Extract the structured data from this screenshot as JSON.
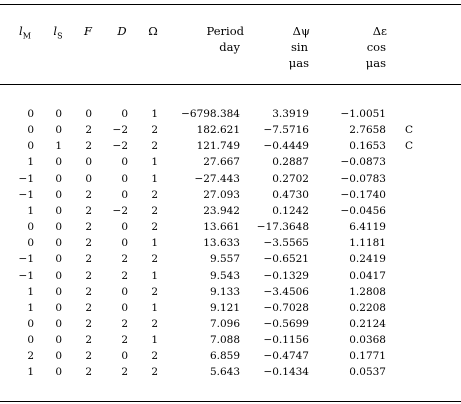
{
  "header": {
    "lM": "lM",
    "lS": "lS",
    "F": "F",
    "D": "D",
    "Omega": "Ω",
    "period_line1": "Period",
    "period_line2": "day",
    "dpsi_line1": "Δψ",
    "dpsi_line2": "sin",
    "dpsi_line3": "μas",
    "deps_line1": "Δε",
    "deps_line2": "cos",
    "deps_line3": "μas"
  },
  "rows": [
    {
      "lM": "0",
      "lS": "0",
      "F": "0",
      "D": "0",
      "Om": "1",
      "period": "−6798.384",
      "dpsi": "3.3919",
      "deps": "−1.0051",
      "flag": ""
    },
    {
      "lM": "0",
      "lS": "0",
      "F": "2",
      "D": "−2",
      "Om": "2",
      "period": "182.621",
      "dpsi": "−7.5716",
      "deps": "2.7658",
      "flag": "C"
    },
    {
      "lM": "0",
      "lS": "1",
      "F": "2",
      "D": "−2",
      "Om": "2",
      "period": "121.749",
      "dpsi": "−0.4449",
      "deps": "0.1653",
      "flag": "C"
    },
    {
      "lM": "1",
      "lS": "0",
      "F": "0",
      "D": "0",
      "Om": "1",
      "period": "27.667",
      "dpsi": "0.2887",
      "deps": "−0.0873",
      "flag": ""
    },
    {
      "lM": "−1",
      "lS": "0",
      "F": "0",
      "D": "0",
      "Om": "1",
      "period": "−27.443",
      "dpsi": "0.2702",
      "deps": "−0.0783",
      "flag": ""
    },
    {
      "lM": "−1",
      "lS": "0",
      "F": "2",
      "D": "0",
      "Om": "2",
      "period": "27.093",
      "dpsi": "0.4730",
      "deps": "−0.1740",
      "flag": ""
    },
    {
      "lM": "1",
      "lS": "0",
      "F": "2",
      "D": "−2",
      "Om": "2",
      "period": "23.942",
      "dpsi": "0.1242",
      "deps": "−0.0456",
      "flag": ""
    },
    {
      "lM": "0",
      "lS": "0",
      "F": "2",
      "D": "0",
      "Om": "2",
      "period": "13.661",
      "dpsi": "−17.3648",
      "deps": "6.4119",
      "flag": ""
    },
    {
      "lM": "0",
      "lS": "0",
      "F": "2",
      "D": "0",
      "Om": "1",
      "period": "13.633",
      "dpsi": "−3.5565",
      "deps": "1.1181",
      "flag": ""
    },
    {
      "lM": "−1",
      "lS": "0",
      "F": "2",
      "D": "2",
      "Om": "2",
      "period": "9.557",
      "dpsi": "−0.6521",
      "deps": "0.2419",
      "flag": ""
    },
    {
      "lM": "−1",
      "lS": "0",
      "F": "2",
      "D": "2",
      "Om": "1",
      "period": "9.543",
      "dpsi": "−0.1329",
      "deps": "0.0417",
      "flag": ""
    },
    {
      "lM": "1",
      "lS": "0",
      "F": "2",
      "D": "0",
      "Om": "2",
      "period": "9.133",
      "dpsi": "−3.4506",
      "deps": "1.2808",
      "flag": ""
    },
    {
      "lM": "1",
      "lS": "0",
      "F": "2",
      "D": "0",
      "Om": "1",
      "period": "9.121",
      "dpsi": "−0.7028",
      "deps": "0.2208",
      "flag": ""
    },
    {
      "lM": "0",
      "lS": "0",
      "F": "2",
      "D": "2",
      "Om": "2",
      "period": "7.096",
      "dpsi": "−0.5699",
      "deps": "0.2124",
      "flag": ""
    },
    {
      "lM": "0",
      "lS": "0",
      "F": "2",
      "D": "2",
      "Om": "1",
      "period": "7.088",
      "dpsi": "−0.1156",
      "deps": "0.0368",
      "flag": ""
    },
    {
      "lM": "2",
      "lS": "0",
      "F": "2",
      "D": "0",
      "Om": "2",
      "period": "6.859",
      "dpsi": "−0.4747",
      "deps": "0.1771",
      "flag": ""
    },
    {
      "lM": "1",
      "lS": "0",
      "F": "2",
      "D": "2",
      "Om": "2",
      "period": "5.643",
      "dpsi": "−0.1434",
      "deps": "0.0537",
      "flag": ""
    }
  ]
}
